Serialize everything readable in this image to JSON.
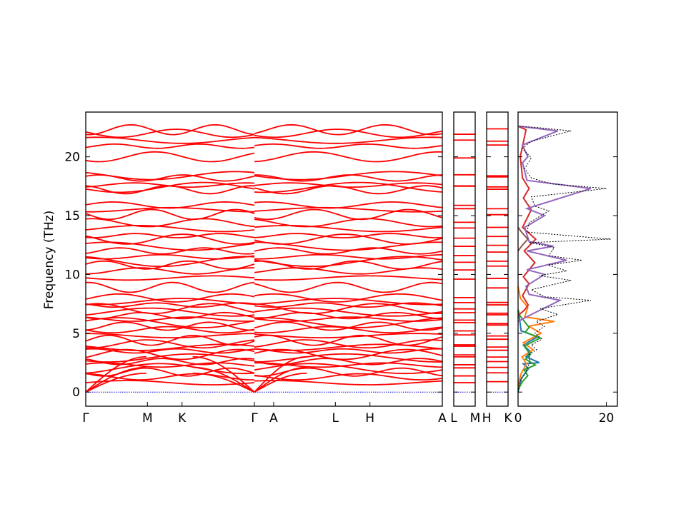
{
  "chart_data": {
    "type": "line",
    "ylabel": "Frequency (THz)",
    "ylim": [
      -1.2,
      23.8
    ],
    "yticks": [
      0,
      5,
      10,
      15,
      20
    ],
    "panels": [
      {
        "id": "main",
        "labels": [
          "Γ",
          "M",
          "K",
          "Γ",
          "A",
          "L",
          "H",
          "A"
        ],
        "label_pos": [
          0,
          0.173,
          0.27,
          0.473,
          0.527,
          0.7,
          0.797,
          1.0
        ]
      },
      {
        "id": "LM",
        "labels": [
          "L",
          "M"
        ],
        "label_pos": [
          0,
          1
        ]
      },
      {
        "id": "HK",
        "labels": [
          "H",
          "K"
        ],
        "label_pos": [
          0,
          1
        ]
      }
    ],
    "band_levels": [
      0.8,
      1.3,
      1.7,
      2.0,
      2.3,
      2.6,
      2.9,
      3.2,
      3.5,
      3.8,
      4.1,
      4.4,
      4.8,
      5.3,
      5.6,
      5.9,
      6.2,
      6.5,
      6.8,
      7.1,
      7.4,
      7.7,
      8.0,
      8.9,
      9.7,
      10.3,
      10.8,
      11.1,
      11.5,
      12.0,
      12.4,
      13.0,
      13.3,
      13.9,
      14.4,
      15.1,
      15.5,
      15.9,
      17.2,
      17.4,
      17.6,
      18.2,
      18.4,
      20.0,
      20.9,
      21.4,
      22.0,
      22.3
    ],
    "acoustic_top": [
      3.0,
      2.1,
      1.6
    ],
    "dos": {
      "xlim": [
        0,
        22.5
      ],
      "xticks": [
        0,
        20
      ],
      "total": [
        [
          0,
          0
        ],
        [
          0.5,
          1
        ],
        [
          1.5,
          1.5
        ],
        [
          2.6,
          2.5
        ],
        [
          2.5,
          3.2
        ],
        [
          4.2,
          3.6
        ],
        [
          3.0,
          4.0
        ],
        [
          5.4,
          4.5
        ],
        [
          3.8,
          5.0
        ],
        [
          6.0,
          5.6
        ],
        [
          4.1,
          6.0
        ],
        [
          9.0,
          6.6
        ],
        [
          5.0,
          7.1
        ],
        [
          16.5,
          7.8
        ],
        [
          6.0,
          8.1
        ],
        [
          3.0,
          8.7
        ],
        [
          12.0,
          9.5
        ],
        [
          4.8,
          9.9
        ],
        [
          11.0,
          10.3
        ],
        [
          6.8,
          10.8
        ],
        [
          14.5,
          11.2
        ],
        [
          7.0,
          11.6
        ],
        [
          8.2,
          12.3
        ],
        [
          2.5,
          12.7
        ],
        [
          21.0,
          13.0
        ],
        [
          2.0,
          13.6
        ],
        [
          2.5,
          14.4
        ],
        [
          7.0,
          15.4
        ],
        [
          3.8,
          15.8
        ],
        [
          3.0,
          16.6
        ],
        [
          20.0,
          17.3
        ],
        [
          7.5,
          17.7
        ],
        [
          3.0,
          18.2
        ],
        [
          1.5,
          19.0
        ],
        [
          3.0,
          19.9
        ],
        [
          1.0,
          20.7
        ],
        [
          2.8,
          21.3
        ],
        [
          12.0,
          22.2
        ],
        [
          4.0,
          22.5
        ],
        [
          0,
          22.6
        ]
      ],
      "partials": [
        {
          "color": "#1f77b4",
          "points": [
            [
              0,
              0
            ],
            [
              0.8,
              1.2
            ],
            [
              2.4,
              2.0
            ],
            [
              1.2,
              2.4
            ],
            [
              4.8,
              2.5
            ],
            [
              1.8,
              3.0
            ],
            [
              2.9,
              3.4
            ],
            [
              1.2,
              4.0
            ],
            [
              4.4,
              4.7
            ],
            [
              0.7,
              5.2
            ],
            [
              0.4,
              6.0
            ],
            [
              0,
              7.0
            ]
          ]
        },
        {
          "color": "#ff7f0e",
          "points": [
            [
              0,
              0.5
            ],
            [
              0.6,
              1.5
            ],
            [
              1.9,
              2.4
            ],
            [
              0.9,
              3.0
            ],
            [
              3.4,
              3.6
            ],
            [
              1.2,
              4.2
            ],
            [
              5.2,
              5.0
            ],
            [
              2.4,
              5.6
            ],
            [
              8.2,
              6.0
            ],
            [
              1.5,
              6.4
            ],
            [
              2.2,
              7.2
            ],
            [
              0.5,
              8.0
            ],
            [
              0,
              9.0
            ]
          ]
        },
        {
          "color": "#2ca02c",
          "points": [
            [
              0,
              0.2
            ],
            [
              1.0,
              0.9
            ],
            [
              2.2,
              1.4
            ],
            [
              1.4,
              1.9
            ],
            [
              3.9,
              2.3
            ],
            [
              1.7,
              2.8
            ],
            [
              2.8,
              3.2
            ],
            [
              1.4,
              3.9
            ],
            [
              5.0,
              4.6
            ],
            [
              1.6,
              5.1
            ],
            [
              2.5,
              5.5
            ],
            [
              0.4,
              6.5
            ],
            [
              0,
              7.0
            ]
          ]
        },
        {
          "color": "#d62728",
          "points": [
            [
              0,
              6.5
            ],
            [
              1.5,
              7.0
            ],
            [
              2.3,
              7.4
            ],
            [
              1.0,
              8.2
            ],
            [
              2.5,
              9.2
            ],
            [
              1.2,
              9.8
            ],
            [
              3.8,
              11.0
            ],
            [
              1.4,
              12.0
            ],
            [
              4.0,
              13.0
            ],
            [
              1.0,
              14.0
            ],
            [
              3.0,
              15.5
            ],
            [
              1.2,
              16.5
            ],
            [
              2.5,
              17.3
            ],
            [
              1.0,
              18.2
            ],
            [
              0.5,
              20.0
            ],
            [
              1.8,
              22.3
            ],
            [
              0,
              22.6
            ]
          ]
        },
        {
          "color": "#9467bd",
          "points": [
            [
              0,
              6.0
            ],
            [
              3.0,
              6.6
            ],
            [
              9.5,
              7.8
            ],
            [
              2.5,
              8.3
            ],
            [
              1.8,
              9.0
            ],
            [
              6.0,
              10.0
            ],
            [
              2.0,
              10.4
            ],
            [
              11.0,
              11.2
            ],
            [
              2.0,
              12.0
            ],
            [
              8.0,
              12.4
            ],
            [
              2.5,
              12.8
            ],
            [
              1.5,
              14.0
            ],
            [
              6.0,
              15.0
            ],
            [
              2.0,
              15.6
            ],
            [
              16.5,
              17.3
            ],
            [
              2.0,
              18.0
            ],
            [
              1.0,
              19.5
            ],
            [
              2.2,
              20.0
            ],
            [
              1.0,
              21.0
            ],
            [
              9.0,
              22.2
            ],
            [
              0,
              22.6
            ]
          ]
        },
        {
          "color": "#8c564b",
          "points": [
            [
              0,
              12.0
            ],
            [
              1.0,
              12.5
            ],
            [
              2.2,
              13.0
            ],
            [
              0.8,
              13.6
            ],
            [
              0,
              14.0
            ]
          ]
        }
      ]
    }
  }
}
